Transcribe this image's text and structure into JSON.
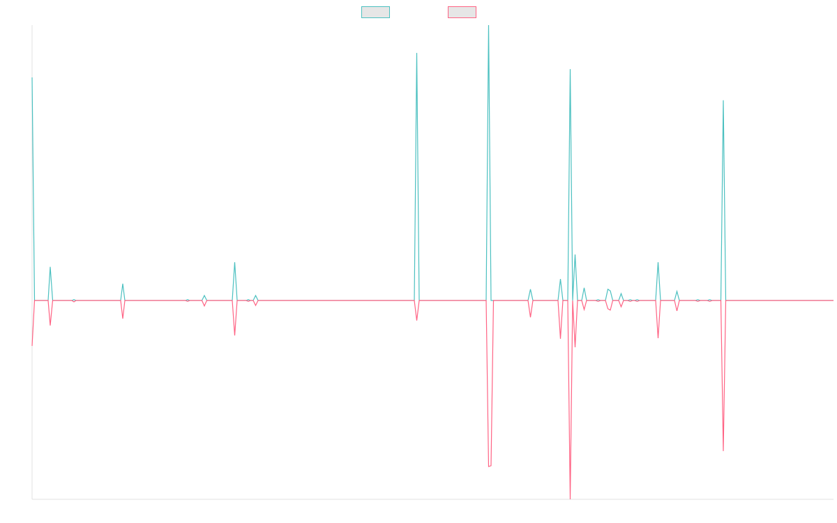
{
  "chart_data": {
    "type": "line",
    "x": [
      0,
      3.5,
      23,
      26,
      29.5,
      57,
      60,
      63,
      127,
      130,
      133,
      220,
      223,
      226,
      243.5,
      247,
      250.5,
      287,
      290.5,
      294,
      307,
      310,
      313,
      317,
      320.5,
      324,
      548,
      551.5,
      555,
      651,
      654.5,
      658,
      661.5,
      711,
      714.5,
      718,
      754,
      757.5,
      761,
      768,
      771.5,
      775,
      778.5,
      782,
      788,
      791.5,
      795,
      808,
      811.5,
      815,
      822,
      825.5,
      829,
      832.5,
      841,
      844.5,
      848,
      854,
      857.5,
      861,
      864,
      867.5,
      871,
      894,
      897.5,
      901,
      921,
      924.5,
      928,
      951,
      954.5,
      958,
      968,
      971.5,
      975,
      987.5,
      991,
      994.5,
      1149
    ],
    "series": [
      {
        "color": "#4bc0c0",
        "values": [
          81,
          0,
          0,
          12.2,
          0,
          0,
          0.3,
          0,
          0,
          6.1,
          0,
          0,
          0.3,
          0,
          0,
          1.8,
          0,
          0,
          13.9,
          0,
          0,
          0.3,
          0,
          0,
          1.8,
          0,
          0,
          89.9,
          0,
          0,
          100,
          0,
          0,
          0,
          4.1,
          0,
          0,
          7.8,
          0,
          0,
          84,
          0,
          16.7,
          0,
          0,
          4.6,
          0,
          0,
          0.3,
          0,
          0,
          4.1,
          3.5,
          0,
          0,
          2.5,
          0,
          0,
          0.3,
          0,
          0,
          0.3,
          0,
          0,
          13.9,
          0,
          0,
          3.3,
          0,
          0,
          0.3,
          0,
          0,
          0.3,
          0,
          0,
          72.7,
          0,
          0
        ]
      },
      {
        "color": "#ff6384",
        "values": [
          -16.5,
          0,
          0,
          -9.1,
          0,
          0,
          -0.5,
          0,
          0,
          -6.6,
          0,
          0,
          -0.3,
          0,
          0,
          -2,
          0,
          0,
          -12.7,
          0,
          0,
          -0.3,
          0,
          0,
          -1.8,
          0,
          0,
          -7.3,
          0,
          0,
          -60.3,
          -60,
          0,
          0,
          -6.1,
          0,
          0,
          -13.9,
          0,
          0,
          -72.2,
          0,
          -17,
          0,
          0,
          -3.3,
          0,
          0,
          -0.3,
          0,
          0,
          -3,
          -3.5,
          0,
          0,
          -2.3,
          0,
          0,
          -0.3,
          0,
          0,
          -0.3,
          0,
          0,
          -13.7,
          0,
          0,
          -3.8,
          0,
          0,
          -0.3,
          0,
          0,
          -0.3,
          0,
          0,
          -54.7,
          0,
          0
        ]
      }
    ],
    "xlim": [
      0,
      1149
    ],
    "ylim": [
      -72.2,
      100
    ]
  }
}
